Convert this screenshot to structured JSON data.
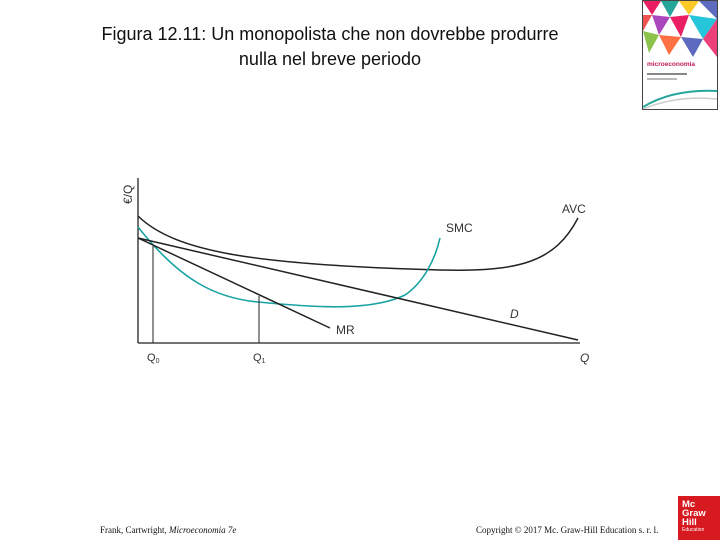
{
  "slide": {
    "title_line1": "Figura 12.11: Un monopolista che non dovrebbe produrre",
    "title_line2": "nulla nel breve periodo"
  },
  "book_cover": {
    "title": "microeconomia",
    "accent_colors": [
      "#e91e63",
      "#26a69a",
      "#ffca28",
      "#5c6bc0",
      "#ef5350"
    ]
  },
  "diagram": {
    "y_axis_label": "€/Q",
    "x_axis_label": "Q",
    "curves": [
      {
        "id": "avc",
        "label": "AVC",
        "color": "#222222"
      },
      {
        "id": "smc",
        "label": "SMC",
        "color": "#1aa3a3"
      },
      {
        "id": "demand",
        "label": "D",
        "color": "#222222"
      },
      {
        "id": "mr",
        "label": "MR",
        "color": "#222222"
      }
    ],
    "quantity_marks": [
      {
        "id": "q0",
        "label": "Q",
        "subscript": "0"
      },
      {
        "id": "q1",
        "label": "Q",
        "subscript": "1"
      }
    ]
  },
  "footer": {
    "authors": "Frank, Cartwright, ",
    "book": "Microeconomia 7e",
    "copyright": "Copyright © 2017 Mc. Graw-Hill Education s. r. l."
  },
  "logo": {
    "lines": [
      "Mc",
      "Graw",
      "Hill"
    ],
    "sub": "Education",
    "color": "#d71920"
  }
}
